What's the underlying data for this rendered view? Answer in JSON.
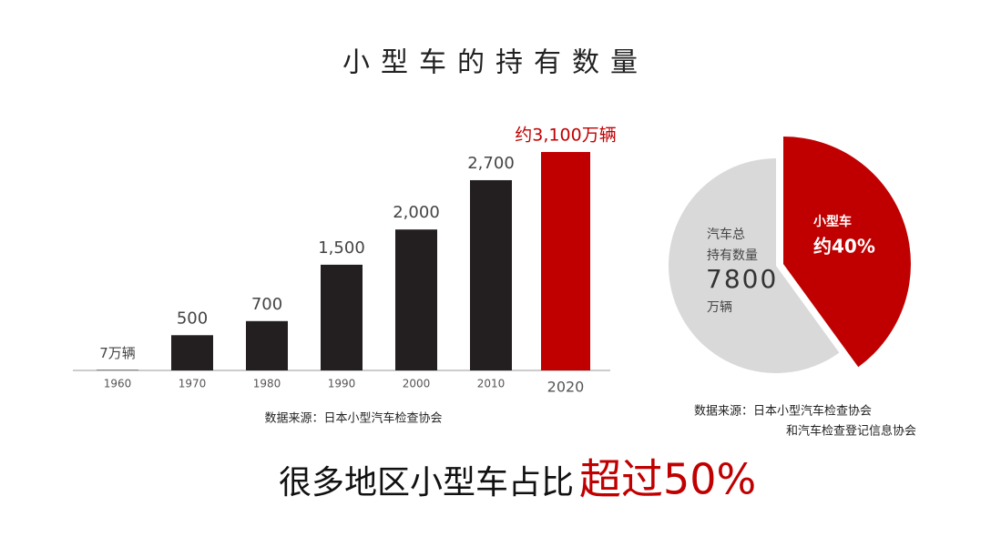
{
  "title": "小型车的持有数量",
  "headline": {
    "text": "很多地区小型车占比",
    "highlight": "超过50%"
  },
  "chart_data": [
    {
      "type": "bar",
      "categories": [
        "1960",
        "1970",
        "1980",
        "1990",
        "2000",
        "2010",
        "2020"
      ],
      "values": [
        7,
        500,
        700,
        1500,
        2000,
        2700,
        3100
      ],
      "value_labels": [
        "7万辆",
        "500",
        "700",
        "1,500",
        "2,000",
        "2,700",
        "约3,100万辆"
      ],
      "colors": [
        "#231f20",
        "#231f20",
        "#231f20",
        "#231f20",
        "#231f20",
        "#231f20",
        "#c00000"
      ],
      "source": "数据来源：日本小型汽车检查协会"
    },
    {
      "type": "pie",
      "categories": [
        "小型车",
        null
      ],
      "values": [
        40,
        60
      ],
      "value_labels": [
        "约40%",
        null
      ],
      "colors": [
        "#c00000",
        "#d9d9d9"
      ],
      "total_label": [
        "汽车总",
        "持有数量"
      ],
      "total": 7800,
      "total_unit": "万辆",
      "source": [
        "数据来源：日本小型汽车检查协会",
        "和汽车检查登记信息协会"
      ]
    }
  ]
}
